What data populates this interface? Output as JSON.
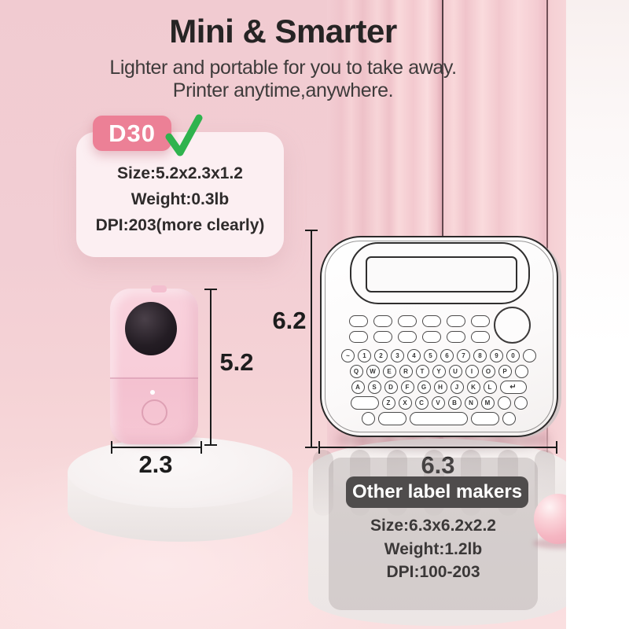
{
  "page": {
    "title": "Mini & Smarter",
    "subtitle1": "Lighter and portable for you to take away.",
    "subtitle2": "Printer anytime,anywhere."
  },
  "d30_card": {
    "badge": "D30",
    "specs": [
      "Size:5.2x2.3x1.2",
      "Weight:0.3lb",
      "DPI:203(more clearly)"
    ]
  },
  "other_card": {
    "badge": "Other label makers",
    "specs": [
      "Size:6.3x6.2x2.2",
      "Weight:1.2lb",
      "DPI:100-203"
    ]
  },
  "dimensions": {
    "d30_height": "5.2",
    "d30_width": "2.3",
    "other_height": "6.2",
    "other_width": "6.3"
  },
  "icons": {
    "d30_check": "green-checkmark",
    "mini_lens": "camera-lens-window",
    "enter_key": "return-arrow"
  },
  "device_keyboard": {
    "function_rows": [
      6,
      6
    ],
    "rows": [
      [
        {
          "t": "~"
        },
        {
          "t": "1"
        },
        {
          "t": "2"
        },
        {
          "t": "3"
        },
        {
          "t": "4"
        },
        {
          "t": "5"
        },
        {
          "t": "6"
        },
        {
          "t": "7"
        },
        {
          "t": "8"
        },
        {
          "t": "9"
        },
        {
          "t": "0"
        },
        {}
      ],
      [
        {
          "t": "Q"
        },
        {
          "t": "W"
        },
        {
          "t": "E"
        },
        {
          "t": "R"
        },
        {
          "t": "T"
        },
        {
          "t": "Y"
        },
        {
          "t": "U"
        },
        {
          "t": "I"
        },
        {
          "t": "O"
        },
        {
          "t": "P"
        },
        {}
      ],
      [
        {
          "t": "A"
        },
        {
          "t": "S"
        },
        {
          "t": "D"
        },
        {
          "t": "F"
        },
        {
          "t": "G"
        },
        {
          "t": "H"
        },
        {
          "t": "J"
        },
        {
          "t": "K"
        },
        {
          "t": "L"
        },
        {
          "t": "↵",
          "s": "enter"
        }
      ],
      [
        {
          "s": "pill"
        },
        {
          "t": "Z"
        },
        {
          "t": "X"
        },
        {
          "t": "C"
        },
        {
          "t": "V"
        },
        {
          "t": "B"
        },
        {
          "t": "N"
        },
        {
          "t": "M"
        },
        {},
        {}
      ],
      [
        {},
        {
          "s": "pill"
        },
        {
          "s": "space"
        },
        {
          "s": "pill"
        },
        {}
      ]
    ]
  },
  "colors": {
    "accent_pink": "#ec8096",
    "badge_dark": "#4f4c4c",
    "check_green": "#2fb34e",
    "background_pink": "#f2ced4",
    "text_dark": "#262424"
  }
}
